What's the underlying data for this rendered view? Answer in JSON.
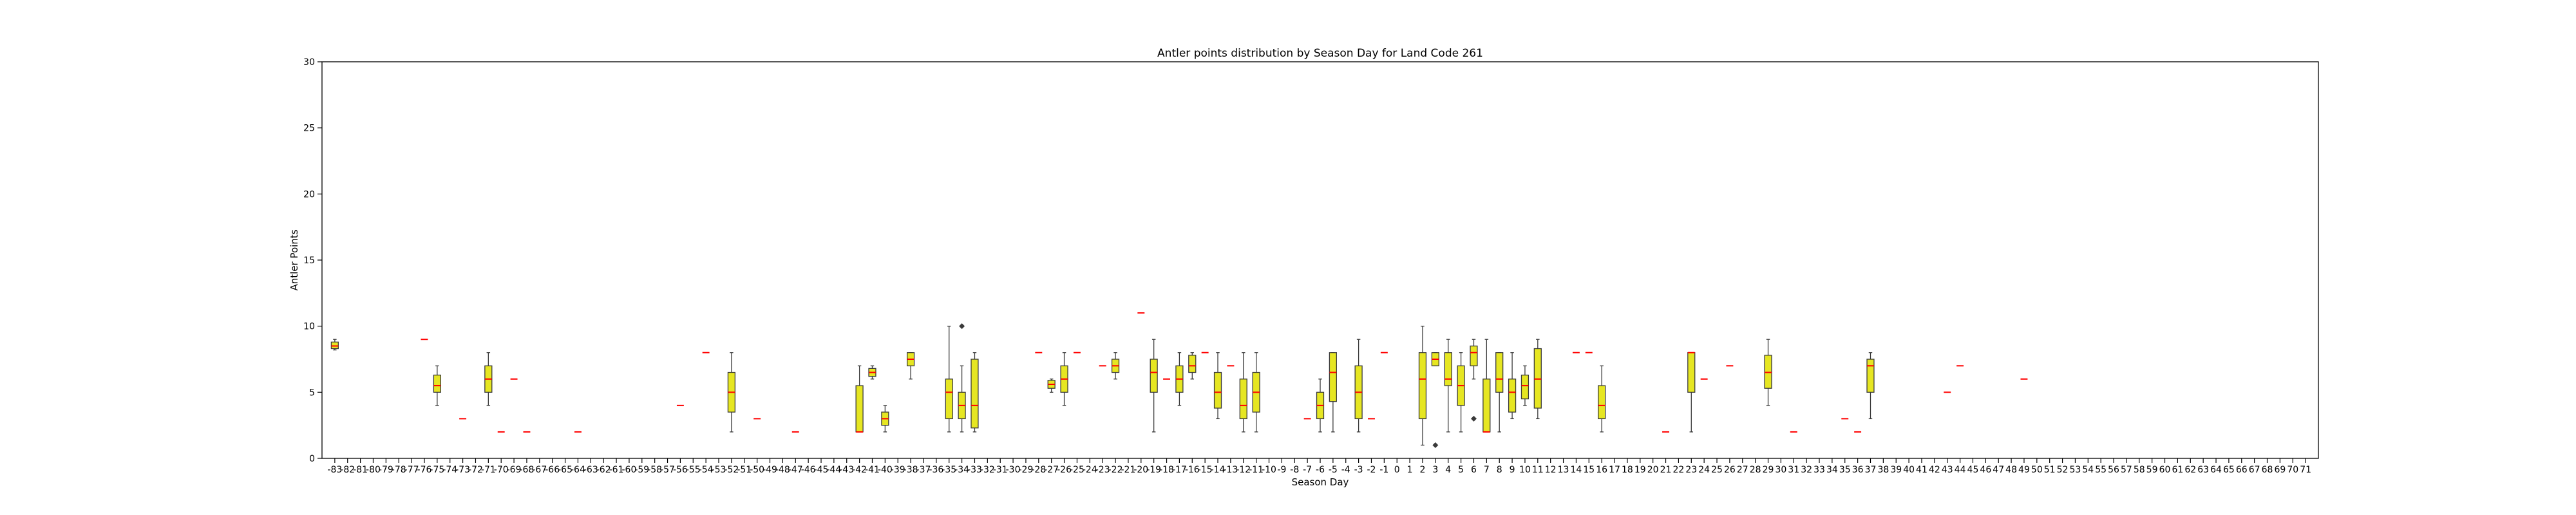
{
  "chart_data": {
    "type": "box",
    "title": "Antler points distribution by Season Day for Land Code 261",
    "xlabel": "Season Day",
    "ylabel": "Antler Points",
    "ylim": [
      0,
      30
    ],
    "yticks": [
      0,
      5,
      10,
      15,
      20,
      25,
      30
    ],
    "x_categories": [
      -83,
      -82,
      -81,
      -80,
      -79,
      -78,
      -77,
      -76,
      -75,
      -74,
      -73,
      -72,
      -71,
      -70,
      -69,
      -68,
      -67,
      -66,
      -65,
      -64,
      -63,
      -62,
      -61,
      -60,
      -59,
      -58,
      -57,
      -56,
      -55,
      -54,
      -53,
      -52,
      -51,
      -50,
      -49,
      -48,
      -47,
      -46,
      -45,
      -44,
      -43,
      -42,
      -41,
      -40,
      -39,
      -38,
      -37,
      -36,
      -35,
      -34,
      -33,
      -32,
      -31,
      -30,
      -29,
      -28,
      -27,
      -26,
      -25,
      -24,
      -23,
      -22,
      -21,
      -20,
      -19,
      -18,
      -17,
      -16,
      -15,
      -14,
      -13,
      -12,
      -11,
      -10,
      -9,
      -8,
      -7,
      -6,
      -5,
      -4,
      -3,
      -2,
      -1,
      0,
      1,
      2,
      3,
      4,
      5,
      6,
      7,
      8,
      9,
      10,
      11,
      12,
      13,
      14,
      15,
      16,
      17,
      18,
      19,
      20,
      21,
      22,
      23,
      24,
      25,
      26,
      27,
      28,
      29,
      30,
      31,
      32,
      33,
      34,
      35,
      36,
      37,
      38,
      39,
      40,
      41,
      42,
      43,
      44,
      45,
      46,
      47,
      48,
      49,
      50,
      51,
      52,
      53,
      54,
      55,
      56,
      57,
      58,
      59,
      60,
      61,
      62,
      63,
      64,
      65,
      66,
      67,
      68,
      69,
      70,
      71
    ],
    "boxes": [
      {
        "day": -83,
        "q1": 8.3,
        "median": 8.5,
        "q3": 8.8,
        "whisker_low": 8.2,
        "whisker_high": 9.0,
        "fliers": []
      },
      {
        "day": -76,
        "median": 9,
        "fliers": []
      },
      {
        "day": -75,
        "q1": 5.0,
        "median": 5.5,
        "q3": 6.3,
        "whisker_low": 4.0,
        "whisker_high": 7.0,
        "fliers": []
      },
      {
        "day": -73,
        "median": 3,
        "fliers": []
      },
      {
        "day": -71,
        "q1": 5.0,
        "median": 6.0,
        "q3": 7.0,
        "whisker_low": 4.0,
        "whisker_high": 8.0,
        "fliers": []
      },
      {
        "day": -70,
        "median": 2,
        "fliers": []
      },
      {
        "day": -69,
        "median": 6,
        "fliers": []
      },
      {
        "day": -68,
        "median": 2,
        "fliers": []
      },
      {
        "day": -64,
        "median": 2,
        "fliers": []
      },
      {
        "day": -56,
        "median": 4,
        "fliers": []
      },
      {
        "day": -54,
        "median": 8,
        "fliers": []
      },
      {
        "day": -52,
        "q1": 3.5,
        "median": 5.0,
        "q3": 6.5,
        "whisker_low": 2.0,
        "whisker_high": 8.0,
        "fliers": []
      },
      {
        "day": -50,
        "median": 3,
        "fliers": []
      },
      {
        "day": -47,
        "median": 2,
        "fliers": []
      },
      {
        "day": -42,
        "q1": 2.0,
        "median": 2.0,
        "q3": 5.5,
        "whisker_low": 2.0,
        "whisker_high": 7.0,
        "fliers": []
      },
      {
        "day": -41,
        "q1": 6.2,
        "median": 6.5,
        "q3": 6.8,
        "whisker_low": 6.0,
        "whisker_high": 7.0,
        "fliers": []
      },
      {
        "day": -40,
        "q1": 2.5,
        "median": 3.0,
        "q3": 3.5,
        "whisker_low": 2.0,
        "whisker_high": 4.0,
        "fliers": []
      },
      {
        "day": -38,
        "q1": 7.0,
        "median": 7.5,
        "q3": 8.0,
        "whisker_low": 6.0,
        "whisker_high": 8.0,
        "fliers": []
      },
      {
        "day": -35,
        "q1": 3.0,
        "median": 5.0,
        "q3": 6.0,
        "whisker_low": 2.0,
        "whisker_high": 10.0,
        "fliers": []
      },
      {
        "day": -34,
        "q1": 3.0,
        "median": 4.0,
        "q3": 5.0,
        "whisker_low": 2.0,
        "whisker_high": 7.0,
        "fliers": [
          10
        ]
      },
      {
        "day": -33,
        "q1": 2.3,
        "median": 4.0,
        "q3": 7.5,
        "whisker_low": 2.0,
        "whisker_high": 8.0,
        "fliers": []
      },
      {
        "day": -28,
        "median": 8,
        "fliers": []
      },
      {
        "day": -27,
        "q1": 5.3,
        "median": 5.6,
        "q3": 5.9,
        "whisker_low": 5.0,
        "whisker_high": 6.0,
        "fliers": []
      },
      {
        "day": -26,
        "q1": 5.0,
        "median": 6.0,
        "q3": 7.0,
        "whisker_low": 4.0,
        "whisker_high": 8.0,
        "fliers": []
      },
      {
        "day": -25,
        "median": 8,
        "fliers": []
      },
      {
        "day": -23,
        "median": 7,
        "fliers": []
      },
      {
        "day": -22,
        "q1": 6.5,
        "median": 7.0,
        "q3": 7.5,
        "whisker_low": 6.0,
        "whisker_high": 8.0,
        "fliers": []
      },
      {
        "day": -20,
        "median": 11,
        "fliers": []
      },
      {
        "day": -19,
        "q1": 5.0,
        "median": 6.5,
        "q3": 7.5,
        "whisker_low": 2.0,
        "whisker_high": 9.0,
        "fliers": []
      },
      {
        "day": -18,
        "median": 6,
        "fliers": []
      },
      {
        "day": -17,
        "q1": 5.0,
        "median": 6.0,
        "q3": 7.0,
        "whisker_low": 4.0,
        "whisker_high": 8.0,
        "fliers": []
      },
      {
        "day": -16,
        "q1": 6.5,
        "median": 7.0,
        "q3": 7.8,
        "whisker_low": 6.0,
        "whisker_high": 8.0,
        "fliers": []
      },
      {
        "day": -15,
        "median": 8,
        "fliers": []
      },
      {
        "day": -14,
        "q1": 3.8,
        "median": 5.0,
        "q3": 6.5,
        "whisker_low": 3.0,
        "whisker_high": 8.0,
        "fliers": []
      },
      {
        "day": -13,
        "median": 7,
        "fliers": []
      },
      {
        "day": -12,
        "q1": 3.0,
        "median": 4.0,
        "q3": 6.0,
        "whisker_low": 2.0,
        "whisker_high": 8.0,
        "fliers": []
      },
      {
        "day": -11,
        "q1": 3.5,
        "median": 5.0,
        "q3": 6.5,
        "whisker_low": 2.0,
        "whisker_high": 8.0,
        "fliers": []
      },
      {
        "day": -7,
        "median": 3,
        "fliers": []
      },
      {
        "day": -6,
        "q1": 3.0,
        "median": 4.0,
        "q3": 5.0,
        "whisker_low": 2.0,
        "whisker_high": 6.0,
        "fliers": []
      },
      {
        "day": -5,
        "q1": 4.3,
        "median": 6.5,
        "q3": 8.0,
        "whisker_low": 2.0,
        "whisker_high": 8.0,
        "fliers": []
      },
      {
        "day": -3,
        "q1": 3.0,
        "median": 5.0,
        "q3": 7.0,
        "whisker_low": 2.0,
        "whisker_high": 9.0,
        "fliers": []
      },
      {
        "day": -2,
        "median": 3,
        "fliers": []
      },
      {
        "day": -1,
        "median": 8,
        "fliers": []
      },
      {
        "day": 2,
        "q1": 3.0,
        "median": 6.0,
        "q3": 8.0,
        "whisker_low": 1.0,
        "whisker_high": 10.0,
        "fliers": []
      },
      {
        "day": 3,
        "q1": 7.0,
        "median": 7.5,
        "q3": 8.0,
        "whisker_low": 7.0,
        "whisker_high": 8.0,
        "fliers": [
          1
        ]
      },
      {
        "day": 4,
        "q1": 5.5,
        "median": 6.0,
        "q3": 8.0,
        "whisker_low": 2.0,
        "whisker_high": 9.0,
        "fliers": []
      },
      {
        "day": 5,
        "q1": 4.0,
        "median": 5.5,
        "q3": 7.0,
        "whisker_low": 2.0,
        "whisker_high": 8.0,
        "fliers": []
      },
      {
        "day": 6,
        "q1": 7.0,
        "median": 8.0,
        "q3": 8.5,
        "whisker_low": 6.0,
        "whisker_high": 9.0,
        "fliers": [
          3
        ]
      },
      {
        "day": 7,
        "q1": 2.0,
        "median": 2.0,
        "q3": 6.0,
        "whisker_low": 2.0,
        "whisker_high": 9.0,
        "fliers": []
      },
      {
        "day": 8,
        "q1": 5.0,
        "median": 6.0,
        "q3": 8.0,
        "whisker_low": 2.0,
        "whisker_high": 8.0,
        "fliers": []
      },
      {
        "day": 9,
        "q1": 3.5,
        "median": 5.0,
        "q3": 6.0,
        "whisker_low": 3.0,
        "whisker_high": 8.0,
        "fliers": []
      },
      {
        "day": 10,
        "q1": 4.5,
        "median": 5.5,
        "q3": 6.3,
        "whisker_low": 4.0,
        "whisker_high": 7.0,
        "fliers": []
      },
      {
        "day": 11,
        "q1": 3.8,
        "median": 6.0,
        "q3": 8.3,
        "whisker_low": 3.0,
        "whisker_high": 9.0,
        "fliers": []
      },
      {
        "day": 14,
        "median": 8,
        "fliers": []
      },
      {
        "day": 15,
        "median": 8,
        "fliers": []
      },
      {
        "day": 16,
        "q1": 3.0,
        "median": 4.0,
        "q3": 5.5,
        "whisker_low": 2.0,
        "whisker_high": 7.0,
        "fliers": []
      },
      {
        "day": 21,
        "median": 2,
        "fliers": []
      },
      {
        "day": 23,
        "q1": 5.0,
        "median": 8.0,
        "q3": 8.0,
        "whisker_low": 2.0,
        "whisker_high": 8.0,
        "fliers": []
      },
      {
        "day": 24,
        "median": 6,
        "fliers": []
      },
      {
        "day": 26,
        "median": 7,
        "fliers": []
      },
      {
        "day": 29,
        "q1": 5.3,
        "median": 6.5,
        "q3": 7.8,
        "whisker_low": 4.0,
        "whisker_high": 9.0,
        "fliers": []
      },
      {
        "day": 31,
        "median": 2,
        "fliers": []
      },
      {
        "day": 35,
        "median": 3,
        "fliers": []
      },
      {
        "day": 36,
        "median": 2,
        "fliers": []
      },
      {
        "day": 37,
        "q1": 5.0,
        "median": 7.0,
        "q3": 7.5,
        "whisker_low": 3.0,
        "whisker_high": 8.0,
        "fliers": []
      },
      {
        "day": 43,
        "median": 5,
        "fliers": []
      },
      {
        "day": 44,
        "median": 7,
        "fliers": []
      },
      {
        "day": 49,
        "median": 6,
        "fliers": []
      }
    ],
    "box_color": "#e6e622",
    "median_color": "#ff0000",
    "edge_color": "#3a3a3a",
    "grid": false,
    "legend": "none"
  }
}
